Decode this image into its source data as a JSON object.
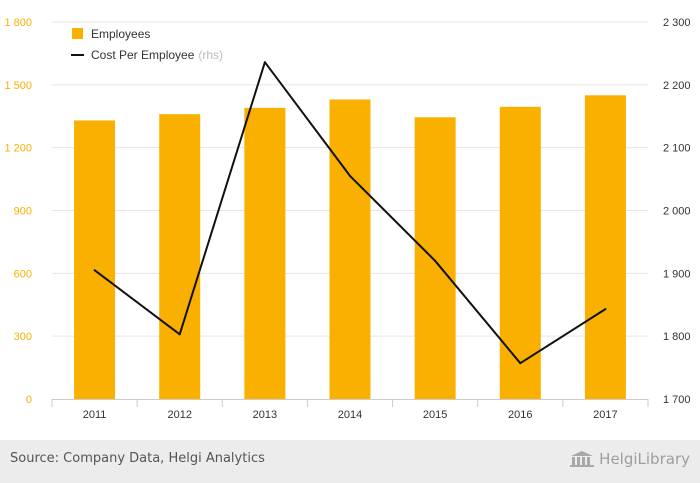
{
  "chart_data": {
    "type": "bar+line",
    "categories": [
      "2011",
      "2012",
      "2013",
      "2014",
      "2015",
      "2016",
      "2017"
    ],
    "series": [
      {
        "name": "Employees",
        "type": "bar",
        "axis": "left",
        "color": "#f9b000",
        "values": [
          1330,
          1360,
          1390,
          1430,
          1345,
          1395,
          1450
        ]
      },
      {
        "name": "Cost Per Employee",
        "name_suffix": "(rhs)",
        "type": "line",
        "axis": "right",
        "color": "#111111",
        "values": [
          1905,
          1803,
          2236,
          2055,
          1920,
          1757,
          1843
        ]
      }
    ],
    "y_left": {
      "min": 0,
      "max": 1800,
      "ticks": [
        "0",
        "300",
        "600",
        "900",
        "1 200",
        "1 500",
        "1 800"
      ],
      "color": "#f9b000"
    },
    "y_right": {
      "min": 1700,
      "max": 2300,
      "ticks": [
        "1 700",
        "1 800",
        "1 900",
        "2 000",
        "2 100",
        "2 200",
        "2 300"
      ],
      "color": "#333333"
    },
    "grid": true,
    "legend_position": "top-left"
  },
  "footer": {
    "source": "Source: Company Data, Helgi Analytics",
    "brand": "HelgiLibrary"
  }
}
